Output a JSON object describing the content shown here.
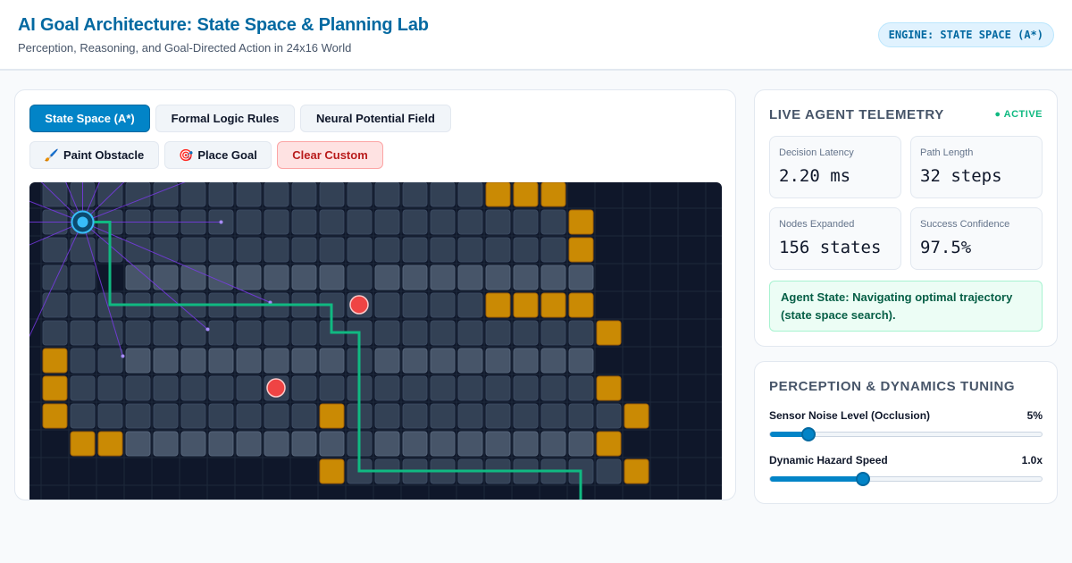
{
  "header": {
    "title": "AI Goal Architecture: State Space & Planning Lab",
    "subtitle": "Perception, Reasoning, and Goal-Directed Action in 24x16 World",
    "engine_badge": "ENGINE: STATE SPACE (A*)"
  },
  "modes": [
    {
      "label": "State Space (A*)",
      "active": true
    },
    {
      "label": "Formal Logic Rules",
      "active": false
    },
    {
      "label": "Neural Potential Field",
      "active": false
    }
  ],
  "tools": {
    "paint": {
      "icon": "🖌️",
      "label": "Paint Obstacle"
    },
    "goal": {
      "icon": "🎯",
      "label": "Place Goal"
    },
    "clear": {
      "label": "Clear Custom"
    }
  },
  "telemetry": {
    "title": "LIVE AGENT TELEMETRY",
    "status": "● ACTIVE",
    "metrics": [
      {
        "label": "Decision Latency",
        "value": "2.20 ms"
      },
      {
        "label": "Path Length",
        "value": "32 steps"
      },
      {
        "label": "Nodes Expanded",
        "value": "156 states"
      },
      {
        "label": "Success Confidence",
        "value": "97.5%"
      }
    ],
    "agent_state": "Agent State: Navigating optimal trajectory (state space search)."
  },
  "tuning": {
    "title": "PERCEPTION & DYNAMICS TUNING",
    "sensor_noise": {
      "label": "Sensor Noise Level (Occlusion)",
      "value": "5%",
      "fraction": 0.14
    },
    "hazard_speed": {
      "label": "Dynamic Hazard Speed",
      "value": "1.0x",
      "fraction": 0.34
    }
  },
  "colors": {
    "accent": "#0284c7",
    "obstacle": "#ca8a04",
    "path": "#10b981",
    "hazard": "#ef4444",
    "agent": "#38bdf8"
  }
}
